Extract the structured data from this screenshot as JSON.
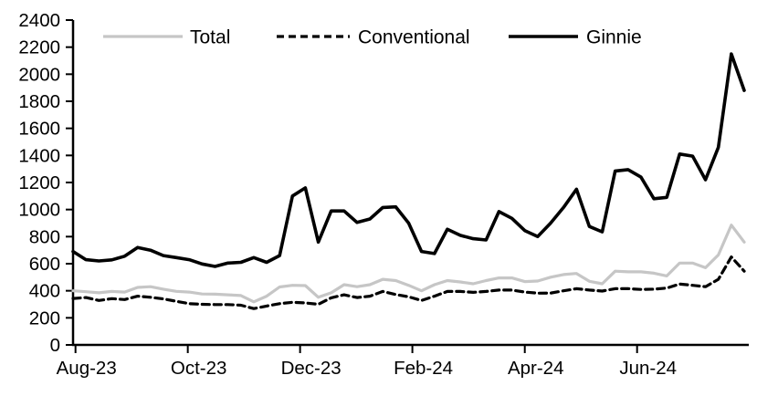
{
  "chart_data": {
    "type": "line",
    "title": "",
    "xlabel": "",
    "ylabel": "",
    "x_unit": "weekly",
    "n_points": 53,
    "x_tick_labels": [
      "Aug-23",
      "Oct-23",
      "Dec-23",
      "Feb-24",
      "Apr-24",
      "Jun-24"
    ],
    "x_tick_week_positions": [
      0.19,
      8.89,
      17.59,
      26.29,
      35.0,
      43.7
    ],
    "ylim": [
      0,
      2400
    ],
    "y_tick_step": 200,
    "y_tick_labels": [
      "0",
      "200",
      "400",
      "600",
      "800",
      "1000",
      "1200",
      "1400",
      "1600",
      "1800",
      "2000",
      "2200",
      "2400"
    ],
    "grid": false,
    "legend_position": "top-inside",
    "series": [
      {
        "name": "Total",
        "style": "solid",
        "color": "#c6c6c6",
        "values": [
          400,
          393,
          385,
          395,
          390,
          425,
          430,
          412,
          396,
          390,
          376,
          375,
          370,
          365,
          318,
          360,
          428,
          440,
          438,
          352,
          385,
          445,
          430,
          445,
          485,
          475,
          440,
          400,
          445,
          475,
          465,
          452,
          475,
          495,
          495,
          468,
          472,
          500,
          520,
          528,
          470,
          452,
          545,
          540,
          540,
          530,
          510,
          605,
          605,
          570,
          665,
          885,
          760
        ]
      },
      {
        "name": "Conventional",
        "style": "dashed",
        "color": "#000000",
        "values": [
          343,
          350,
          328,
          342,
          335,
          360,
          352,
          340,
          322,
          305,
          300,
          298,
          298,
          293,
          268,
          287,
          305,
          315,
          310,
          300,
          348,
          370,
          350,
          360,
          395,
          372,
          355,
          328,
          360,
          395,
          395,
          388,
          395,
          405,
          405,
          390,
          382,
          383,
          400,
          415,
          405,
          398,
          415,
          415,
          410,
          412,
          420,
          450,
          440,
          430,
          485,
          650,
          545
        ]
      },
      {
        "name": "Ginnie",
        "style": "solid",
        "color": "#000000",
        "values": [
          690,
          630,
          620,
          628,
          655,
          720,
          700,
          660,
          645,
          630,
          598,
          580,
          605,
          610,
          645,
          610,
          660,
          1100,
          1160,
          760,
          990,
          990,
          905,
          930,
          1015,
          1020,
          900,
          690,
          675,
          855,
          810,
          785,
          775,
          985,
          935,
          845,
          800,
          900,
          1015,
          1150,
          875,
          835,
          1285,
          1295,
          1240,
          1080,
          1090,
          1410,
          1395,
          1220,
          1460,
          2150,
          1880
        ]
      }
    ]
  }
}
